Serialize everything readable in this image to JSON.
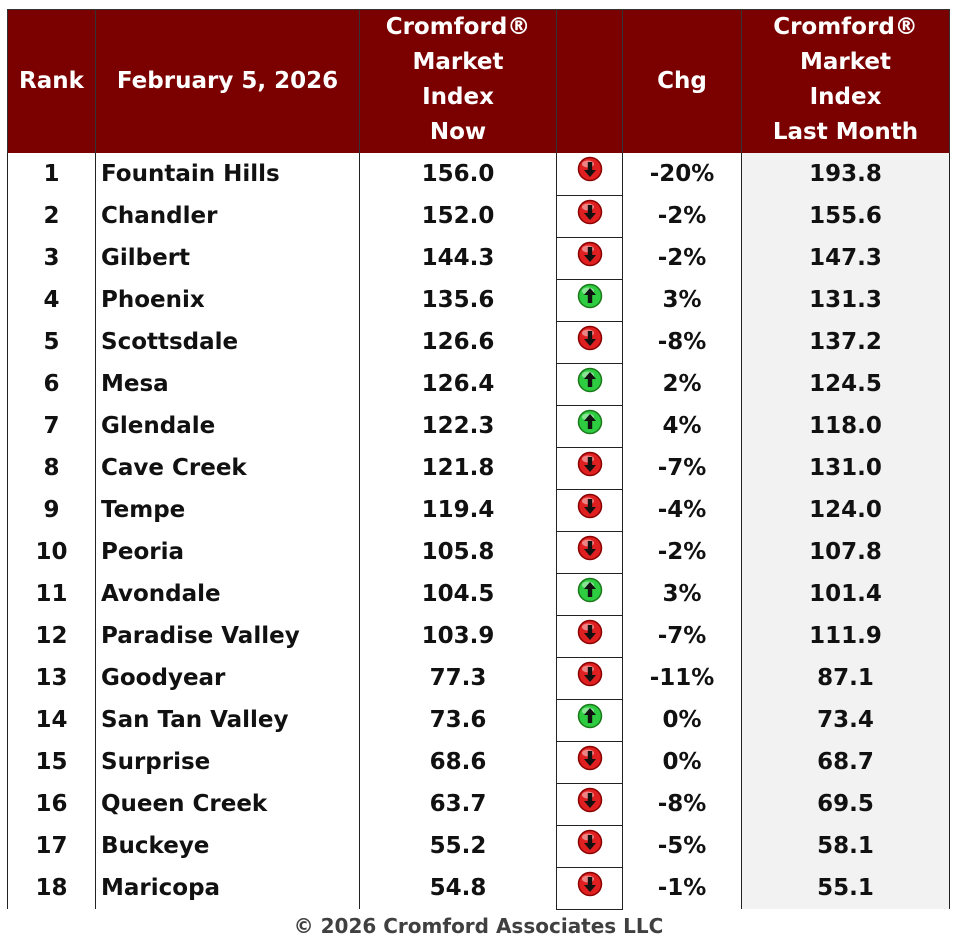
{
  "header": {
    "rank": "Rank",
    "date": "February 5, 2026",
    "now": [
      "Cromford®",
      "Market",
      "Index",
      "Now"
    ],
    "chg": "Chg",
    "last": [
      "Cromford®",
      "Market",
      "Index",
      "Last Month"
    ]
  },
  "rows": [
    {
      "rank": "1",
      "city": "Fountain Hills",
      "now": "156.0",
      "dir": "down",
      "chg": "-20%",
      "last": "193.8"
    },
    {
      "rank": "2",
      "city": "Chandler",
      "now": "152.0",
      "dir": "down",
      "chg": "-2%",
      "last": "155.6"
    },
    {
      "rank": "3",
      "city": "Gilbert",
      "now": "144.3",
      "dir": "down",
      "chg": "-2%",
      "last": "147.3"
    },
    {
      "rank": "4",
      "city": "Phoenix",
      "now": "135.6",
      "dir": "up",
      "chg": "3%",
      "last": "131.3"
    },
    {
      "rank": "5",
      "city": "Scottsdale",
      "now": "126.6",
      "dir": "down",
      "chg": "-8%",
      "last": "137.2"
    },
    {
      "rank": "6",
      "city": "Mesa",
      "now": "126.4",
      "dir": "up",
      "chg": "2%",
      "last": "124.5"
    },
    {
      "rank": "7",
      "city": "Glendale",
      "now": "122.3",
      "dir": "up",
      "chg": "4%",
      "last": "118.0"
    },
    {
      "rank": "8",
      "city": "Cave Creek",
      "now": "121.8",
      "dir": "down",
      "chg": "-7%",
      "last": "131.0"
    },
    {
      "rank": "9",
      "city": "Tempe",
      "now": "119.4",
      "dir": "down",
      "chg": "-4%",
      "last": "124.0"
    },
    {
      "rank": "10",
      "city": "Peoria",
      "now": "105.8",
      "dir": "down",
      "chg": "-2%",
      "last": "107.8"
    },
    {
      "rank": "11",
      "city": "Avondale",
      "now": "104.5",
      "dir": "up",
      "chg": "3%",
      "last": "101.4"
    },
    {
      "rank": "12",
      "city": "Paradise Valley",
      "now": "103.9",
      "dir": "down",
      "chg": "-7%",
      "last": "111.9"
    },
    {
      "rank": "13",
      "city": "Goodyear",
      "now": "77.3",
      "dir": "down",
      "chg": "-11%",
      "last": "87.1"
    },
    {
      "rank": "14",
      "city": "San Tan Valley",
      "now": "73.6",
      "dir": "up",
      "chg": "0%",
      "last": "73.4"
    },
    {
      "rank": "15",
      "city": "Surprise",
      "now": "68.6",
      "dir": "down",
      "chg": "0%",
      "last": "68.7"
    },
    {
      "rank": "16",
      "city": "Queen Creek",
      "now": "63.7",
      "dir": "down",
      "chg": "-8%",
      "last": "69.5"
    },
    {
      "rank": "17",
      "city": "Buckeye",
      "now": "55.2",
      "dir": "down",
      "chg": "-5%",
      "last": "58.1"
    },
    {
      "rank": "18",
      "city": "Maricopa",
      "now": "54.8",
      "dir": "down",
      "chg": "-1%",
      "last": "55.1"
    }
  ],
  "icons": {
    "up": {
      "name": "up-arrow-icon",
      "fill": "#2ecc40",
      "stroke": "#1a7a1a"
    },
    "down": {
      "name": "down-arrow-icon",
      "fill": "#e02020",
      "stroke": "#8a0000"
    }
  },
  "colors": {
    "header_bg": "#7b0000",
    "header_text": "#ffffff"
  },
  "footer": "© 2026 Cromford Associates LLC"
}
